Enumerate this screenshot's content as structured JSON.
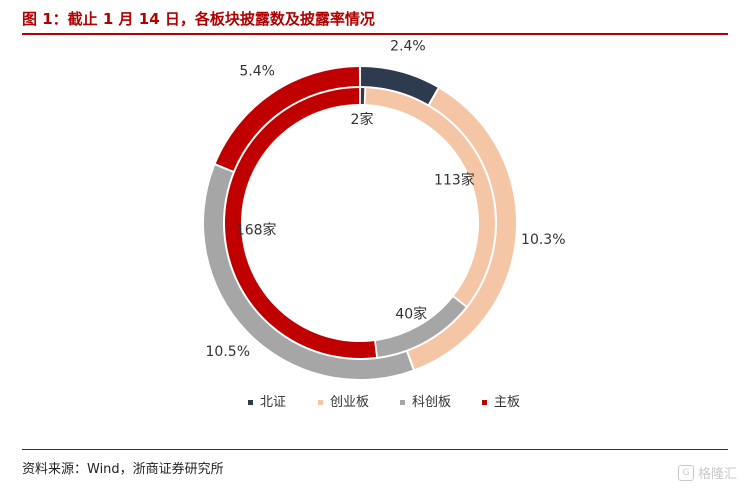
{
  "header": {
    "title": "图 1：截止 1 月 14 日，各板块披露数及披露率情况"
  },
  "footer": {
    "source": "资料来源：Wind，浙商证券研究所",
    "watermark": "格隆汇"
  },
  "colors": {
    "bse": "#2e3a4d",
    "chinext": "#f5c6a5",
    "star": "#a6a6a6",
    "main": "#c00000"
  },
  "chart_data": {
    "type": "pie",
    "subtype": "double-donut",
    "title": "",
    "legend_position": "bottom",
    "series": [
      {
        "name": "",
        "ring": "outer",
        "categories": [
          "北证",
          "创业板",
          "科创板",
          "主板"
        ],
        "values": [
          2.4,
          10.3,
          10.5,
          5.4
        ],
        "labels": [
          "2.4%",
          "10.3%",
          "10.5%",
          "5.4%"
        ]
      },
      {
        "name": "",
        "ring": "inner",
        "categories": [
          "北证",
          "创业板",
          "科创板",
          "主板"
        ],
        "values": [
          2,
          113,
          40,
          168
        ],
        "labels": [
          "2家",
          "113家",
          "40家",
          "168家"
        ]
      }
    ],
    "legend": [
      "北证",
      "创业板",
      "科创板",
      "主板"
    ]
  }
}
